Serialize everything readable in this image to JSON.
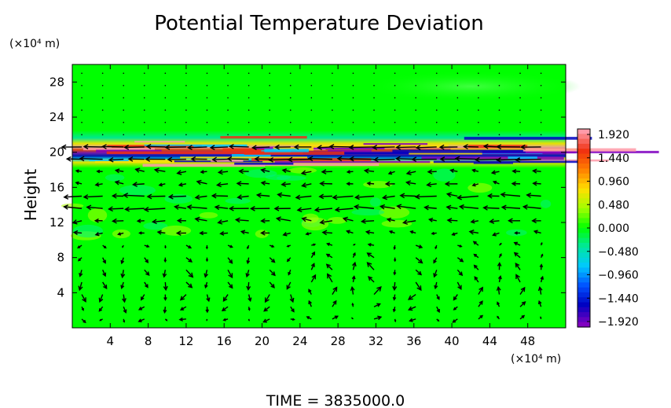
{
  "chart_data": {
    "type": "heatmap",
    "title": "Potential Temperature Deviation",
    "ylabel": "Height",
    "x_unit_label": "(×10⁴ m)",
    "y_unit_label": "(×10⁴ m)",
    "x_ticks": [
      4,
      8,
      12,
      16,
      20,
      24,
      28,
      32,
      36,
      40,
      44,
      48
    ],
    "y_ticks": [
      4,
      8,
      12,
      16,
      20,
      24,
      28
    ],
    "xlim": [
      0,
      52
    ],
    "ylim": [
      0,
      30
    ],
    "colorbar": {
      "ticks": [
        "1.920",
        "1.440",
        "0.960",
        "0.480",
        "0.000",
        "−0.480",
        "−0.960",
        "−1.440",
        "−1.920"
      ],
      "range": [
        -1.92,
        1.92
      ],
      "colors": [
        "#ff9aa8",
        "#f03010",
        "#ff8000",
        "#ffe000",
        "#a0ff00",
        "#00ff00",
        "#00e6a0",
        "#00c8ff",
        "#0050ff",
        "#0000c0",
        "#8000c0"
      ]
    },
    "field_description_rows": [
      {
        "y_range": [
          0,
          10
        ],
        "value": 0.0,
        "note": "uniform green lower layer"
      },
      {
        "y_range": [
          10,
          18
        ],
        "value": 0.1,
        "note": "mottled green with yellow patches"
      },
      {
        "y_range": [
          18,
          22
        ],
        "value": "alternating -1.92 to 1.92",
        "note": "strong banded layer near tropopause"
      },
      {
        "y_range": [
          22,
          30
        ],
        "value": 0.05,
        "note": "smooth green upper layer"
      }
    ],
    "time_label": "TIME  =  3835000.0"
  }
}
